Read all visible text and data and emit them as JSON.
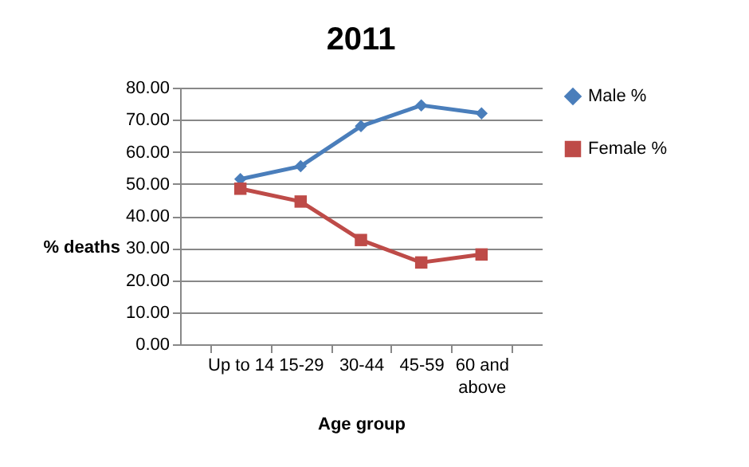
{
  "chart_data": {
    "type": "line",
    "title": "2011",
    "xlabel": "Age group",
    "ylabel": "% deaths",
    "categories": [
      "Up to 14",
      "15-29",
      "30-44",
      "45-59",
      "60 and above"
    ],
    "series": [
      {
        "name": "Male %",
        "color": "#4a7ebb",
        "marker": "diamond",
        "values": [
          51.5,
          55.5,
          68.0,
          74.5,
          72.0
        ]
      },
      {
        "name": "Female %",
        "color": "#be4b48",
        "marker": "square",
        "values": [
          48.5,
          44.5,
          32.5,
          25.5,
          28.0
        ]
      }
    ],
    "ylim": [
      0,
      80
    ],
    "yticks": [
      {
        "value": 0,
        "label": "0.00"
      },
      {
        "value": 10,
        "label": "10.00"
      },
      {
        "value": 20,
        "label": "20.00"
      },
      {
        "value": 30,
        "label": "30.00"
      },
      {
        "value": 40,
        "label": "40.00"
      },
      {
        "value": 50,
        "label": "50.00"
      },
      {
        "value": 60,
        "label": "60.00"
      },
      {
        "value": 70,
        "label": "70.00"
      },
      {
        "value": 80,
        "label": "80.00"
      }
    ],
    "grid": "y",
    "legend": "right",
    "line_style": "solid"
  }
}
